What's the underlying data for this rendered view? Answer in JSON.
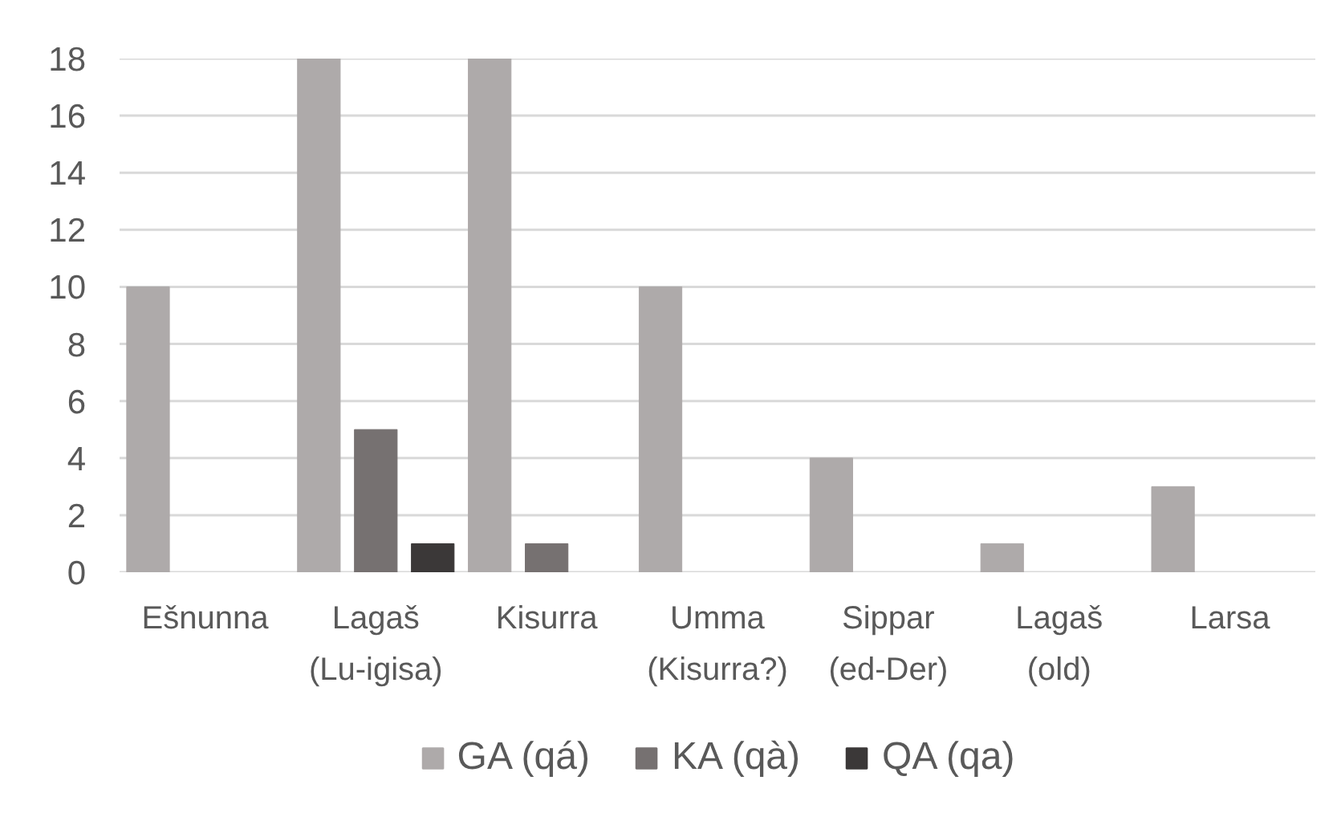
{
  "chart_data": {
    "type": "bar",
    "categories": [
      "Ešnunna",
      "Lagaš (Lu-igisa)",
      "Kisurra",
      "Umma (Kisurra?)",
      "Sippar (ed-Der)",
      "Lagaš (old)",
      "Larsa"
    ],
    "series": [
      {
        "name": "GA (qá)",
        "color": "#aeaaaa",
        "values": [
          10,
          18,
          18,
          10,
          4,
          1,
          3
        ]
      },
      {
        "name": "KA (qà)",
        "color": "#767171",
        "values": [
          null,
          5,
          1,
          null,
          null,
          null,
          null
        ]
      },
      {
        "name": "QA (qa)",
        "color": "#3b3838",
        "values": [
          null,
          1,
          null,
          null,
          null,
          null,
          null
        ]
      }
    ],
    "ylim": [
      0,
      18
    ],
    "yticks": [
      0,
      2,
      4,
      6,
      8,
      10,
      12,
      14,
      16,
      18
    ],
    "grid": "y",
    "legend": "bottom"
  }
}
